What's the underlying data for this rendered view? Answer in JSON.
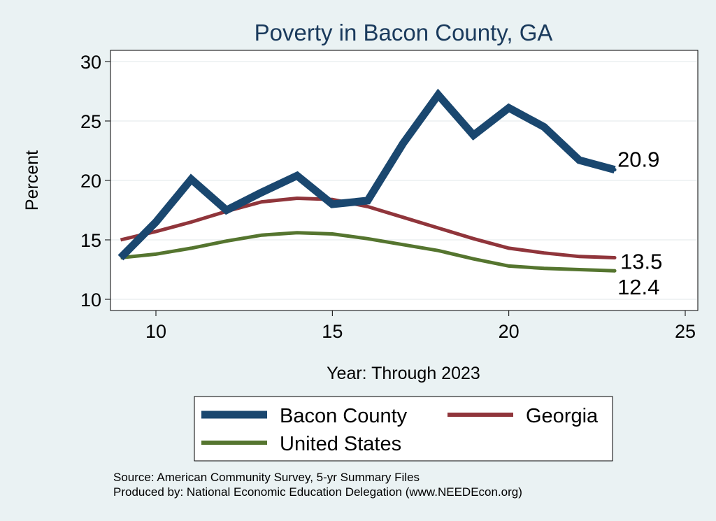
{
  "chart_data": {
    "type": "line",
    "title": "Poverty in Bacon County, GA",
    "xlabel": "Year: Through 2023",
    "ylabel": "Percent",
    "xlim": [
      9,
      25
    ],
    "ylim": [
      10,
      30
    ],
    "xticks": [
      10,
      15,
      20,
      25
    ],
    "yticks": [
      10,
      15,
      20,
      25,
      30
    ],
    "grid": true,
    "legend_position": "bottom",
    "series": [
      {
        "name": "Bacon County",
        "color": "#1a476f",
        "end_label": "20.9",
        "x": [
          9,
          10,
          11,
          12,
          13,
          14,
          15,
          16,
          17,
          18,
          19,
          20,
          21,
          22,
          23
        ],
        "y": [
          13.5,
          16.5,
          20.1,
          17.5,
          19.0,
          20.4,
          18.0,
          18.3,
          23.1,
          27.2,
          23.8,
          26.1,
          24.5,
          21.7,
          20.9
        ]
      },
      {
        "name": "Georgia",
        "color": "#90353b",
        "end_label": "13.5",
        "x": [
          9,
          10,
          11,
          12,
          13,
          14,
          15,
          16,
          17,
          18,
          19,
          20,
          21,
          22,
          23
        ],
        "y": [
          15.0,
          15.7,
          16.5,
          17.4,
          18.2,
          18.5,
          18.4,
          17.8,
          16.9,
          16.0,
          15.1,
          14.3,
          13.9,
          13.6,
          13.5
        ]
      },
      {
        "name": "United States",
        "color": "#55752f",
        "end_label": "12.4",
        "x": [
          9,
          10,
          11,
          12,
          13,
          14,
          15,
          16,
          17,
          18,
          19,
          20,
          21,
          22,
          23
        ],
        "y": [
          13.5,
          13.8,
          14.3,
          14.9,
          15.4,
          15.6,
          15.5,
          15.1,
          14.6,
          14.1,
          13.4,
          12.8,
          12.6,
          12.5,
          12.4
        ]
      }
    ]
  },
  "source": {
    "line1": "Source: American Community Survey, 5-yr Summary Files",
    "line2": "Produced by: National Economic Education Delegation (www.NEEDEcon.org)"
  }
}
